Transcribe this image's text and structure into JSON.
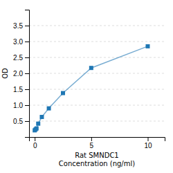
{
  "chart_data": {
    "type": "line",
    "xlabel": "Rat SMNDC1\nConcentration (ng/ml)",
    "ylabel": "OD",
    "x": [
      0.0,
      0.08,
      0.16,
      0.31,
      0.63,
      1.25,
      2.5,
      5.0,
      10.0
    ],
    "values": [
      0.21,
      0.24,
      0.27,
      0.42,
      0.63,
      0.9,
      1.38,
      2.17,
      2.85
    ],
    "marker": "square",
    "xlim": [
      -0.5,
      11.5
    ],
    "ylim": [
      0.0,
      4.0
    ],
    "xticks": [
      0,
      5,
      10
    ],
    "yticks": [
      0.5,
      {
        "value": 1.0,
        "label": "1.0"
      },
      1.5,
      {
        "value": 2.0,
        "label": "2.0"
      },
      2.5,
      {
        "value": 3.0,
        "label": "3.0"
      },
      3.5
    ],
    "grid": true
  }
}
